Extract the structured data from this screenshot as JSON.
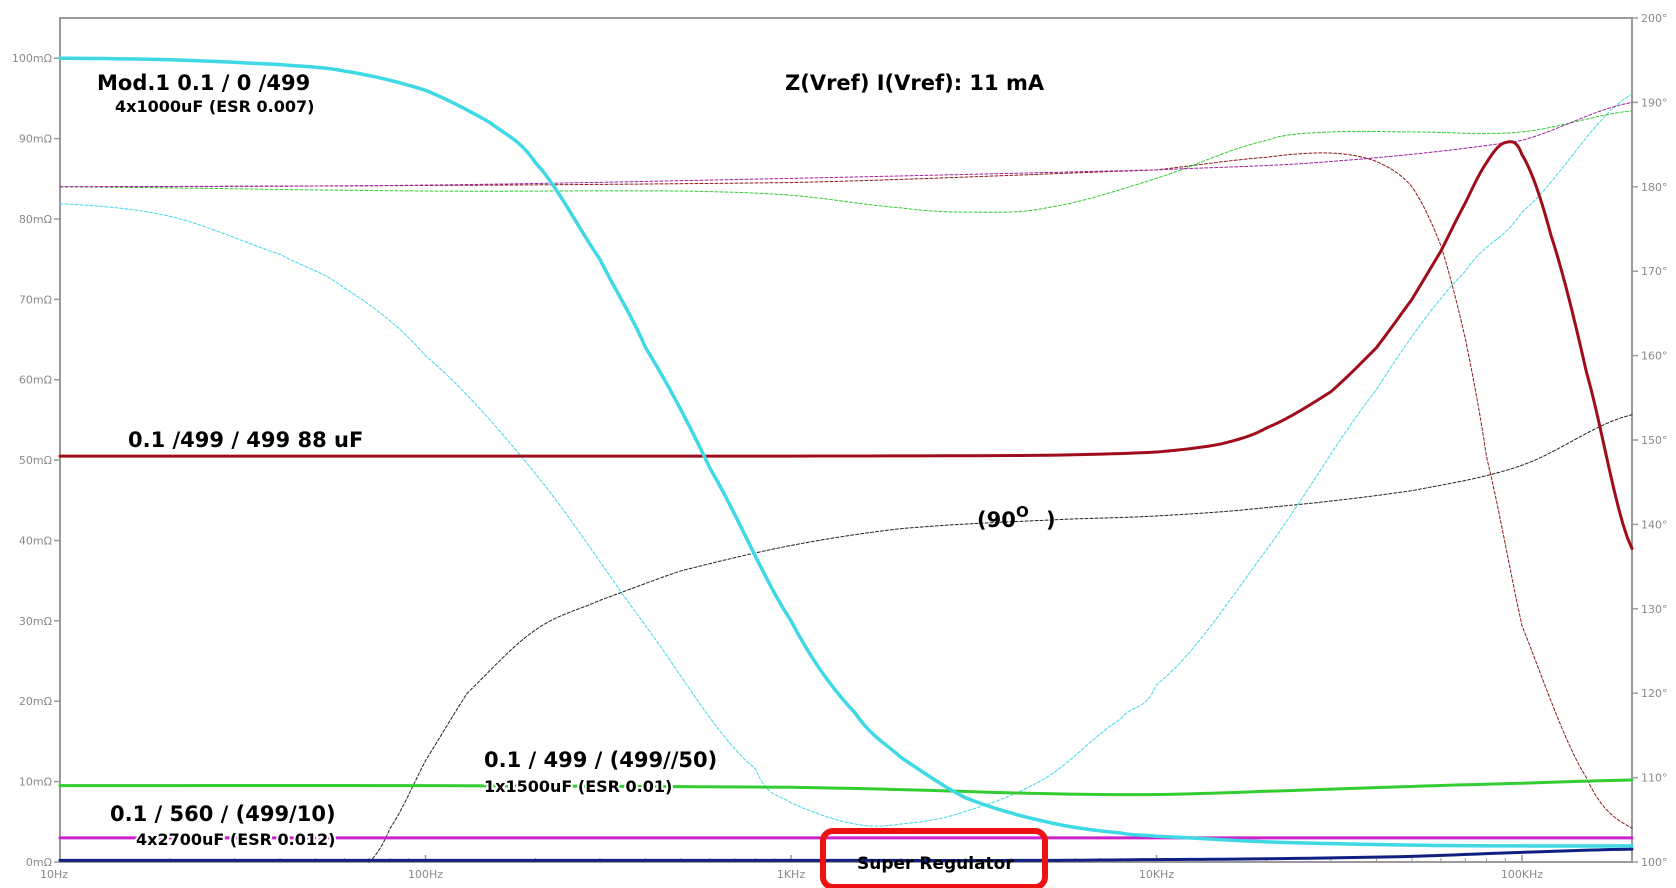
{
  "chart_data": {
    "type": "line",
    "title": "Z(Vref)  I(Vref): 11 mA",
    "x_scale": "log",
    "xlim": [
      10,
      200000
    ],
    "x_ticks": [
      {
        "value": 10,
        "label": "10Hz"
      },
      {
        "value": 100,
        "label": "100Hz"
      },
      {
        "value": 1000,
        "label": "1KHz"
      },
      {
        "value": 10000,
        "label": "10KHz"
      },
      {
        "value": 100000,
        "label": "100KHz"
      }
    ],
    "y_left_ticks": [
      {
        "value": 0,
        "label": "0mΩ"
      },
      {
        "value": 10,
        "label": "10mΩ"
      },
      {
        "value": 20,
        "label": "20mΩ"
      },
      {
        "value": 30,
        "label": "30mΩ"
      },
      {
        "value": 40,
        "label": "40mΩ"
      },
      {
        "value": 50,
        "label": "50mΩ"
      },
      {
        "value": 60,
        "label": "60mΩ"
      },
      {
        "value": 70,
        "label": "70mΩ"
      },
      {
        "value": 80,
        "label": "80mΩ"
      },
      {
        "value": 90,
        "label": "90mΩ"
      },
      {
        "value": 100,
        "label": "100mΩ"
      }
    ],
    "y_left_lim": [
      0,
      105
    ],
    "y_right_ticks": [
      {
        "value": 100,
        "label": "100°"
      },
      {
        "value": 110,
        "label": "110°"
      },
      {
        "value": 120,
        "label": "120°"
      },
      {
        "value": 130,
        "label": "130°"
      },
      {
        "value": 140,
        "label": "140°"
      },
      {
        "value": 150,
        "label": "150°"
      },
      {
        "value": 160,
        "label": "160°"
      },
      {
        "value": 170,
        "label": "170°"
      },
      {
        "value": 180,
        "label": "180°"
      },
      {
        "value": 190,
        "label": "190°"
      },
      {
        "value": 200,
        "label": "200°"
      }
    ],
    "y_right_lim": [
      100,
      200
    ],
    "grid": false,
    "series": [
      {
        "key": "cyan_mag",
        "axis": "left",
        "color": "#3fd9e6",
        "width": 3.5,
        "dashed": false,
        "x": [
          10,
          20,
          40,
          60,
          100,
          150,
          200,
          300,
          400,
          600,
          1000,
          1500,
          2000,
          3000,
          5000,
          8000,
          10000,
          20000,
          50000,
          100000,
          200000
        ],
        "y": [
          100,
          99.8,
          99.2,
          98.4,
          96,
          92,
          87,
          75,
          64,
          49,
          30,
          18.5,
          13,
          8,
          5,
          3.6,
          3.2,
          2.5,
          2.1,
          2.0,
          2.0
        ]
      },
      {
        "key": "darkred_mag",
        "axis": "left",
        "color": "#a00d1a",
        "width": 3,
        "dashed": false,
        "x": [
          10,
          100,
          1000,
          5000,
          10000,
          15000,
          20000,
          30000,
          40000,
          50000,
          60000,
          70000,
          80000,
          90000,
          100000,
          120000,
          150000,
          200000
        ],
        "y": [
          50.5,
          50.5,
          50.5,
          50.6,
          51.0,
          52,
          54,
          58.5,
          64,
          70,
          76,
          82,
          87,
          89.5,
          88,
          78,
          61,
          39
        ]
      },
      {
        "key": "green_mag",
        "axis": "left",
        "color": "#33cc33",
        "width": 3,
        "dashed": false,
        "x": [
          10,
          100,
          1000,
          2000,
          5000,
          10000,
          20000,
          50000,
          100000,
          200000
        ],
        "y": [
          9.5,
          9.5,
          9.3,
          9.0,
          8.5,
          8.4,
          8.8,
          9.4,
          9.8,
          10.2
        ]
      },
      {
        "key": "magenta_mag",
        "axis": "left",
        "color": "#cc22cc",
        "width": 3,
        "dashed": false,
        "x": [
          10,
          1000,
          10000,
          100000,
          200000
        ],
        "y": [
          3.0,
          3.0,
          3.0,
          3.0,
          3.0
        ]
      },
      {
        "key": "navy_mag",
        "axis": "left",
        "color": "#102080",
        "width": 3,
        "dashed": false,
        "x": [
          10,
          1000,
          5000,
          10000,
          20000,
          50000,
          100000,
          200000
        ],
        "y": [
          0.2,
          0.2,
          0.2,
          0.3,
          0.4,
          0.7,
          1.2,
          1.6
        ]
      },
      {
        "key": "cyan_phase",
        "axis": "right",
        "color": "#3fd9e6",
        "width": 1,
        "dashed": true,
        "x": [
          10,
          20,
          40,
          60,
          100,
          200,
          400,
          800,
          1000,
          1500,
          2000,
          3000,
          5000,
          8000,
          10000,
          20000,
          40000,
          70000,
          100000,
          200000
        ],
        "y": [
          178,
          176.5,
          172,
          168,
          160,
          146,
          128,
          111,
          107,
          104.5,
          104.5,
          106,
          110,
          117,
          121,
          137,
          156,
          170,
          177,
          191
        ]
      },
      {
        "key": "darkred_phase",
        "axis": "right",
        "color": "#8b1a1a",
        "width": 1,
        "dashed": true,
        "x": [
          10,
          1000,
          10000,
          20000,
          30000,
          40000,
          50000,
          60000,
          70000,
          80000,
          100000,
          150000,
          200000
        ],
        "y": [
          180,
          180.5,
          182,
          183.5,
          184,
          183,
          180,
          173,
          162,
          148,
          128,
          110,
          104
        ]
      },
      {
        "key": "green_phase",
        "axis": "right",
        "color": "#33cc33",
        "width": 1,
        "dashed": true,
        "x": [
          10,
          100,
          500,
          1000,
          2000,
          3000,
          5000,
          10000,
          20000,
          30000,
          50000,
          100000,
          200000
        ],
        "y": [
          180,
          179.5,
          179.5,
          179,
          177.5,
          177,
          177.5,
          181,
          185.5,
          186.5,
          186.5,
          186.5,
          189
        ]
      },
      {
        "key": "magenta_phase",
        "axis": "right",
        "color": "#a020a0",
        "width": 1,
        "dashed": true,
        "x": [
          10,
          100,
          1000,
          10000,
          30000,
          100000,
          200000
        ],
        "y": [
          180,
          180.2,
          181,
          182,
          183,
          185.5,
          190
        ]
      },
      {
        "key": "black_phase",
        "axis": "right",
        "color": "#222222",
        "width": 1,
        "dashed": true,
        "x": [
          70,
          80,
          100,
          130,
          200,
          300,
          500,
          1000,
          2000,
          5000,
          10000,
          20000,
          50000,
          100000,
          200000
        ],
        "y": [
          100,
          104,
          112,
          120,
          127.5,
          131,
          134.5,
          137.5,
          139.5,
          140.5,
          141,
          142,
          144,
          147,
          153
        ]
      }
    ],
    "annotations": [
      {
        "key": "title",
        "text": "Z(Vref)  I(Vref): 11 mA",
        "size": 21
      },
      {
        "key": "mod1_title",
        "text": "Mod.1  0.1 / 0 /499",
        "size": 21
      },
      {
        "key": "mod1_caps",
        "text": "4x1000uF (ESR 0.007)",
        "size": 16
      },
      {
        "key": "red_label",
        "text": "0.1 /499 / 499  88 uF",
        "size": 21
      },
      {
        "key": "phase_90_label",
        "text": "(90",
        "size": 21
      },
      {
        "key": "phase_90_deg",
        "text": "O",
        "size": 15
      },
      {
        "key": "phase_90_close",
        "text": ")",
        "size": 21
      },
      {
        "key": "green_title",
        "text": "0.1 / 499 / (499//50)",
        "size": 21
      },
      {
        "key": "green_caps",
        "text": "1x1500uF (ESR 0.01)",
        "size": 16
      },
      {
        "key": "magenta_title",
        "text": "0.1 / 560 / (499/10)",
        "size": 21
      },
      {
        "key": "magenta_caps",
        "text": "4x2700uF (ESR 0.012)",
        "size": 16
      },
      {
        "key": "super_regulator",
        "text": "Super Regulator",
        "size": 17
      }
    ],
    "highlight_box_color": "#ee1111"
  }
}
